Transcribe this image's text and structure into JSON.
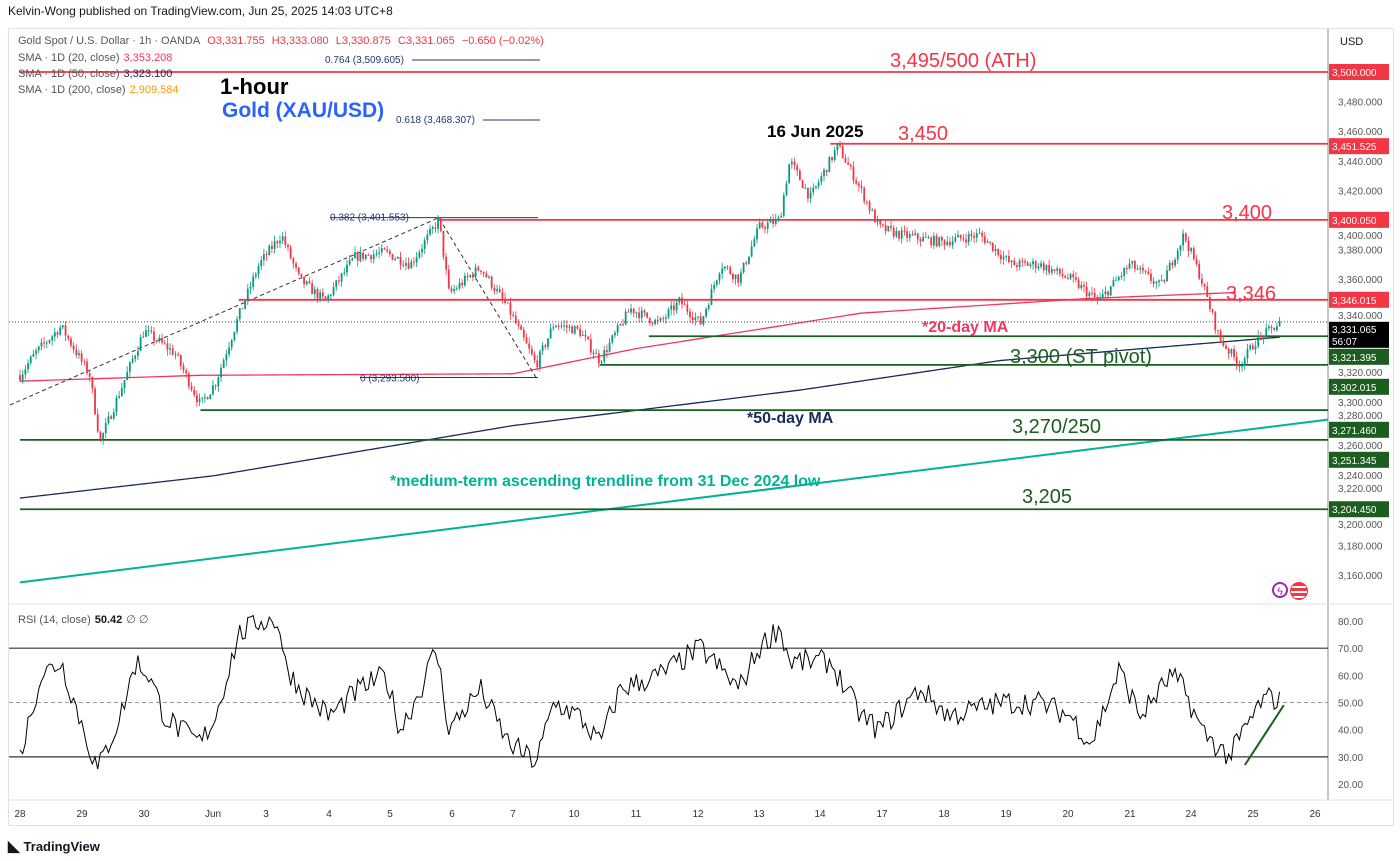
{
  "publisher": "Kelvin-Wong published on TradingView.com, Jun 25, 2025 14:03 UTC+8",
  "legend": {
    "symbol": "Gold Spot / U.S. Dollar · 1h · OANDA",
    "o": "O3,331.755",
    "h": "H3,333.080",
    "l": "L3,330.875",
    "c": "C3,331.065",
    "chg": "−0.650 (−0.02%)",
    "sma20_label": "SMA · 1D (20, close)",
    "sma20_value": "3,353.208",
    "sma50_label": "SMA · 1D (50, close)",
    "sma50_value": "3,323.100",
    "sma200_label": "SMA · 1D (200, close)",
    "sma200_value": "2,909.584",
    "rsi_label": "RSI (14, close)",
    "rsi_value": "50.42",
    "rsi_extra": "∅ ∅"
  },
  "currency": "USD",
  "footer_brand": "TradingView",
  "colors": {
    "up": "#089981",
    "down": "#f23645",
    "red_level": "#f23645",
    "green_level": "#1b5e20",
    "sma20": "#f23663",
    "sma50": "#1a2a5a",
    "trendline": "#00b398",
    "fib": "#1e3a6e"
  },
  "chart_data": [
    {
      "type": "candlestick",
      "title": "1-hour",
      "subtitle": "Gold (XAU/USD)",
      "ylim": [
        3140,
        3520
      ],
      "yticks": [
        "3,160.000",
        "3,180.000",
        "3,200.000",
        "3,220.000",
        "3,240.000",
        "3,260.000",
        "3,280.000",
        "3,300.000",
        "3,320.000",
        "3,340.000",
        "3,360.000",
        "3,380.000",
        "3,400.000",
        "3,420.000",
        "3,440.000",
        "3,460.000",
        "3,480.000"
      ],
      "ytick_values": [
        3160,
        3180,
        3200,
        3220,
        3240,
        3260,
        3280,
        3300,
        3320,
        3340,
        3360,
        3380,
        3400,
        3420,
        3440,
        3460,
        3480
      ],
      "xticks": [
        "28",
        "29",
        "30",
        "Jun",
        "3",
        "4",
        "5",
        "6",
        "7",
        "10",
        "11",
        "12",
        "13",
        "14",
        "17",
        "18",
        "19",
        "20",
        "21",
        "24",
        "25",
        "26"
      ],
      "price_path": [
        [
          "28",
          0,
          3295
        ],
        [
          "28",
          6,
          3310
        ],
        [
          "28",
          16,
          3328
        ],
        [
          "29",
          3,
          3295
        ],
        [
          "29",
          7,
          3250
        ],
        [
          "29",
          15,
          3285
        ],
        [
          "30",
          0,
          3325
        ],
        [
          "30",
          12,
          3310
        ],
        [
          "30",
          22,
          3275
        ],
        [
          "Jun",
          1,
          3290
        ],
        [
          "Jun",
          10,
          3335
        ],
        [
          "Jun",
          18,
          3370
        ],
        [
          "3",
          6,
          3390
        ],
        [
          "3",
          13,
          3360
        ],
        [
          "3",
          23,
          3345
        ],
        [
          "4",
          10,
          3375
        ],
        [
          "4",
          22,
          3378
        ],
        [
          "5",
          8,
          3370
        ],
        [
          "5",
          19,
          3400
        ],
        [
          "5",
          23,
          3350
        ],
        [
          "6",
          11,
          3368
        ],
        [
          "6",
          22,
          3340
        ],
        [
          "7",
          9,
          3302
        ],
        [
          "7",
          16,
          3330
        ],
        [
          "10",
          2,
          3325
        ],
        [
          "10",
          10,
          3305
        ],
        [
          "10",
          22,
          3340
        ],
        [
          "11",
          9,
          3330
        ],
        [
          "11",
          17,
          3345
        ],
        [
          "12",
          1,
          3330
        ],
        [
          "12",
          9,
          3370
        ],
        [
          "12",
          16,
          3360
        ],
        [
          "13",
          0,
          3395
        ],
        [
          "13",
          8,
          3400
        ],
        [
          "13",
          12,
          3440
        ],
        [
          "13",
          20,
          3415
        ],
        [
          "14",
          7,
          3450
        ],
        [
          "14",
          16,
          3420
        ],
        [
          "14",
          23,
          3395
        ],
        [
          "17",
          7,
          3390
        ],
        [
          "17",
          23,
          3385
        ],
        [
          "18",
          14,
          3390
        ],
        [
          "19",
          2,
          3370
        ],
        [
          "19",
          13,
          3370
        ],
        [
          "20",
          1,
          3360
        ],
        [
          "20",
          12,
          3345
        ],
        [
          "21",
          0,
          3370
        ],
        [
          "21",
          12,
          3355
        ],
        [
          "21",
          21,
          3390
        ],
        [
          "24",
          4,
          3360
        ],
        [
          "24",
          11,
          3320
        ],
        [
          "24",
          19,
          3302
        ],
        [
          "25",
          1,
          3318
        ],
        [
          "25",
          11,
          3331
        ]
      ],
      "sma20_path": [
        [
          "28",
          0,
          3291
        ],
        [
          "30",
          22,
          3295
        ],
        [
          "7",
          0,
          3296
        ],
        [
          "11",
          0,
          3313
        ],
        [
          "14",
          16,
          3337
        ],
        [
          "20",
          9,
          3347
        ],
        [
          "24",
          18,
          3351
        ]
      ],
      "sma50_path": [
        [
          "28",
          0,
          3212
        ],
        [
          "Jun",
          0,
          3227
        ],
        [
          "7",
          0,
          3261
        ],
        [
          "13",
          16,
          3285
        ],
        [
          "18",
          22,
          3305
        ],
        [
          "25",
          12,
          3321
        ]
      ],
      "trendline": {
        "label": "*medium-term ascending trendline from 31 Dec 2024 low",
        "from": [
          "28",
          0,
          3155
        ],
        "to": [
          "26",
          5,
          3265
        ]
      },
      "levels": [
        {
          "price": 3500,
          "axis_label": "3,500.000",
          "text": "3,495/500 (ATH)",
          "color": "red",
          "from": [
            "28",
            0
          ]
        },
        {
          "price": 3451.525,
          "axis_label": "3,451.525",
          "text": "3,450",
          "color": "red",
          "from": [
            "14",
            4
          ]
        },
        {
          "price": 3400.05,
          "axis_label": "3,400.050",
          "text": "3,400",
          "color": "red",
          "from": [
            "5",
            19
          ]
        },
        {
          "price": 3346.015,
          "axis_label": "3,346.015",
          "text": "3,346",
          "color": "red",
          "from": [
            "Jun",
            10
          ]
        },
        {
          "price": 3321.395,
          "axis_label": "3,321.395",
          "text": "",
          "color": "green",
          "from": [
            "11",
            5
          ]
        },
        {
          "price": 3302.015,
          "axis_label": "3,302.015",
          "text": "3,300 (ST pivot)",
          "color": "green",
          "from": [
            "10",
            10
          ]
        },
        {
          "price": 3271.46,
          "axis_label": "3,271.460",
          "text": "3,270/250",
          "color": "green",
          "from": [
            "30",
            22
          ]
        },
        {
          "price": 3251.345,
          "axis_label": "3,251.345",
          "text": "",
          "color": "green",
          "from": [
            "28",
            0
          ]
        },
        {
          "price": 3204.45,
          "axis_label": "3,204.450",
          "text": "3,205",
          "color": "green",
          "from": [
            "28",
            0
          ]
        }
      ],
      "last_price": {
        "value": "3,331.065",
        "countdown": "56:07"
      },
      "fibonacci": [
        {
          "text": "0.764 (3,509.605)",
          "price": 3509.605
        },
        {
          "text": "0.618 (3,468.307)",
          "price": 3468.307
        },
        {
          "text": "0.382 (3,401.553)",
          "price": 3401.553
        },
        {
          "text": "0 (3,293.500)",
          "price": 3293.5
        }
      ],
      "annotations": {
        "peak": "16 Jun 2025",
        "sma20": "*20-day MA",
        "sma50": "*50-day MA"
      }
    },
    {
      "type": "line",
      "title": "RSI (14, close)",
      "ylim": [
        15,
        85
      ],
      "yticks": [
        "80.00",
        "70.00",
        "60.00",
        "50.00",
        "40.00",
        "30.00",
        "20.00"
      ],
      "ytick_values": [
        80,
        70,
        60,
        50,
        40,
        30,
        20
      ],
      "bands": [
        70,
        50,
        30
      ],
      "rsi_path": [
        [
          "28",
          0,
          30
        ],
        [
          "28",
          8,
          60
        ],
        [
          "28",
          16,
          65
        ],
        [
          "28",
          23,
          45
        ],
        [
          "29",
          6,
          25
        ],
        [
          "29",
          15,
          45
        ],
        [
          "29",
          21,
          65
        ],
        [
          "30",
          2,
          60
        ],
        [
          "30",
          8,
          45
        ],
        [
          "30",
          14,
          40
        ],
        [
          "30",
          22,
          35
        ],
        [
          "Jun",
          1,
          45
        ],
        [
          "Jun",
          10,
          75
        ],
        [
          "Jun",
          18,
          80
        ],
        [
          "3",
          5,
          80
        ],
        [
          "3",
          7,
          65
        ],
        [
          "3",
          13,
          55
        ],
        [
          "4",
          0,
          45
        ],
        [
          "4",
          12,
          55
        ],
        [
          "4",
          22,
          60
        ],
        [
          "5",
          4,
          40
        ],
        [
          "5",
          12,
          55
        ],
        [
          "5",
          18,
          70
        ],
        [
          "5",
          23,
          40
        ],
        [
          "6",
          11,
          55
        ],
        [
          "6",
          22,
          35
        ],
        [
          "7",
          9,
          28
        ],
        [
          "7",
          16,
          50
        ],
        [
          "10",
          2,
          45
        ],
        [
          "10",
          10,
          35
        ],
        [
          "10",
          18,
          55
        ],
        [
          "11",
          9,
          60
        ],
        [
          "12",
          1,
          70
        ],
        [
          "12",
          16,
          55
        ],
        [
          "13",
          0,
          70
        ],
        [
          "13",
          8,
          78
        ],
        [
          "13",
          12,
          65
        ],
        [
          "14",
          4,
          65
        ],
        [
          "14",
          16,
          45
        ],
        [
          "14",
          23,
          40
        ],
        [
          "17",
          15,
          55
        ],
        [
          "18",
          2,
          45
        ],
        [
          "18",
          22,
          50
        ],
        [
          "19",
          13,
          50
        ],
        [
          "20",
          1,
          45
        ],
        [
          "20",
          9,
          35
        ],
        [
          "20",
          20,
          62
        ],
        [
          "21",
          4,
          45
        ],
        [
          "21",
          16,
          60
        ],
        [
          "21",
          21,
          55
        ],
        [
          "24",
          4,
          40
        ],
        [
          "24",
          9,
          35
        ],
        [
          "24",
          15,
          30
        ],
        [
          "24",
          21,
          40
        ],
        [
          "25",
          3,
          50
        ],
        [
          "25",
          7,
          52
        ],
        [
          "25",
          11,
          50
        ]
      ],
      "support_trendline": {
        "from": [
          "24",
          21,
          27
        ],
        "to": [
          "25",
          12,
          49
        ]
      }
    }
  ]
}
